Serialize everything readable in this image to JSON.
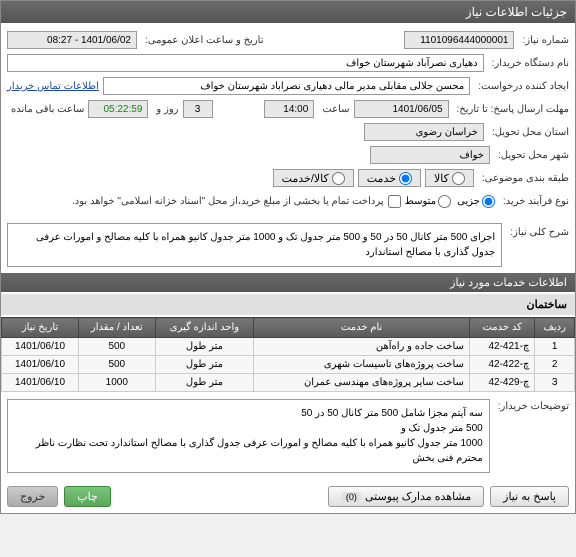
{
  "header": {
    "title": "جزئیات اطلاعات نیاز"
  },
  "info": {
    "niaz_no_label": "شماره نیاز:",
    "niaz_no": "1101096444000001",
    "announce_label": "تاریخ و ساعت اعلان عمومی:",
    "announce_val": "1401/06/02 - 08:27",
    "buyer_label": "نام دستگاه خریدار:",
    "buyer_val": "دهیاری نصرآباد شهرستان خواف",
    "requester_label": "ایجاد کننده درخواست:",
    "requester_val": "محسن جلالی مقابلی مدیر مالی دهیاری نصراباد شهرستان خواف",
    "contact_link": "اطلاعات تماس خریدار",
    "deadline_label": "مهلت ارسال پاسخ: تا تاریخ:",
    "deadline_date": "1401/06/05",
    "saat1": "ساعت",
    "deadline_time": "14:00",
    "days": "3",
    "rooz_va": "روز و",
    "countdown": "05:22:59",
    "saat_baghi": "ساعت باقی مانده",
    "province_label": "استان محل تحویل:",
    "province_val": "خراسان رضوی",
    "city_label": "شهر محل تحویل:",
    "city_val": "خواف",
    "subject_type_label": "طبقه بندی موضوعی:",
    "kala": "کالا",
    "khadmat": "خدمت",
    "kala_khadmat": "کالا/خدمت",
    "process_type_label": "نوع فرآیند خرید:",
    "jozi": "جزیی",
    "motavaset": "متوسط",
    "process_note": "پرداخت تمام یا بخشی از مبلغ خرید،از محل \"اسناد خزانه اسلامی\" خواهد بود."
  },
  "sharh": {
    "label": "شرح کلی نیاز:",
    "text": "اجرای 500 متر کانال 50 در 50 و 500 متر جدول تک و 1000 متر جدول کانیو همراه با کلیه مصالح و امورات عرفی جدول گذاری با مصالح استاندارد"
  },
  "services": {
    "title": "اطلاعات خدمات مورد نیاز",
    "group_label": "ساختمان",
    "cols": {
      "row": "ردیف",
      "code": "کد خدمت",
      "name": "نام خدمت",
      "unit": "واحد اندازه گیری",
      "qty": "تعداد / مقدار",
      "date": "تاریخ نیاز"
    },
    "rows": [
      {
        "n": "1",
        "code": "چ-421-42",
        "name": "ساخت جاده و راه‌آهن",
        "unit": "متر طول",
        "qty": "500",
        "date": "1401/06/10"
      },
      {
        "n": "2",
        "code": "چ-422-42",
        "name": "ساخت پروژه‌های تاسیسات شهری",
        "unit": "متر طول",
        "qty": "500",
        "date": "1401/06/10"
      },
      {
        "n": "3",
        "code": "چ-429-42",
        "name": "ساخت سایر پروژه‌های مهندسی عمران",
        "unit": "متر طول",
        "qty": "1000",
        "date": "1401/06/10"
      }
    ]
  },
  "buyer_notes": {
    "label": "توضیحات خریدار:",
    "text": "سه آیتم مجزا شامل 500 متر کانال 50 در 50\n500 متر جدول تک و\n1000 متر جدول کانیو همراه با کلیه مصالح و امورات عرفی جدول گذاری با مصالح استاندارد تحت نظارت ناظر محترم فنی بخش"
  },
  "buttons": {
    "reply": "پاسخ به نیاز",
    "attachments": "مشاهده مدارک پیوستی",
    "attach_count": "(0)",
    "print": "چاپ",
    "close": "خروج"
  }
}
